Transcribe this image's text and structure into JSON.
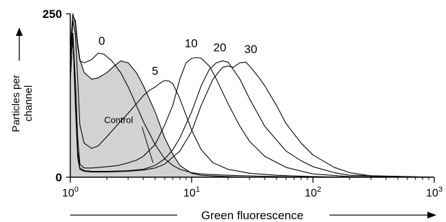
{
  "chart_data": {
    "type": "line",
    "title": "",
    "xlabel": "Green fluorescence",
    "ylabel": [
      "Particles per",
      "channel"
    ],
    "x_scale": "log",
    "xlim": [
      1,
      1000
    ],
    "ylim": [
      0,
      250
    ],
    "x_ticks": [
      {
        "value": 1,
        "base": "10",
        "exp": "0"
      },
      {
        "value": 10,
        "base": "10",
        "exp": "1"
      },
      {
        "value": 100,
        "base": "10",
        "exp": "2"
      },
      {
        "value": 1000,
        "base": "10",
        "exp": "3"
      }
    ],
    "y_ticks": [
      {
        "value": 0,
        "label": "0"
      },
      {
        "value": 250,
        "label": "250"
      }
    ],
    "grid": false,
    "legend": "none",
    "series": [
      {
        "name": "Control",
        "fill": "#d2d2d2",
        "x": [
          1,
          1.05,
          1.1,
          1.15,
          1.2,
          1.3,
          1.5,
          1.7,
          2,
          2.3,
          2.6,
          3,
          3.5,
          4,
          5,
          6,
          7,
          8,
          10,
          12,
          15,
          20,
          30,
          50,
          100
        ],
        "y": [
          200,
          245,
          240,
          205,
          180,
          160,
          150,
          152,
          160,
          170,
          178,
          175,
          160,
          140,
          100,
          60,
          35,
          18,
          6,
          3,
          2,
          1,
          0,
          0,
          0
        ]
      },
      {
        "name": "0",
        "x": [
          1,
          1.05,
          1.1,
          1.15,
          1.2,
          1.3,
          1.5,
          1.7,
          1.9,
          2.2,
          2.6,
          3,
          3.5,
          4,
          5,
          6,
          7,
          8,
          10,
          12,
          15,
          20,
          30,
          50,
          100,
          200,
          1000
        ],
        "y": [
          195,
          250,
          235,
          200,
          178,
          175,
          180,
          190,
          188,
          178,
          160,
          138,
          110,
          85,
          50,
          28,
          18,
          12,
          7,
          5,
          4,
          3,
          2,
          1,
          0,
          0,
          0
        ]
      },
      {
        "name": "5",
        "x": [
          1,
          1.05,
          1.1,
          1.15,
          1.2,
          1.3,
          1.5,
          1.7,
          2,
          2.5,
          3,
          3.5,
          4,
          4.5,
          5,
          5.5,
          6,
          6.5,
          7,
          8,
          10,
          12,
          15,
          20,
          30,
          50,
          100,
          200,
          1000
        ],
        "y": [
          180,
          240,
          220,
          150,
          80,
          52,
          44,
          48,
          62,
          82,
          98,
          112,
          125,
          133,
          138,
          144,
          148,
          147,
          143,
          120,
          72,
          42,
          22,
          12,
          6,
          3,
          1,
          0,
          0
        ]
      },
      {
        "name": "10",
        "x": [
          1,
          1.05,
          1.1,
          1.15,
          1.2,
          1.3,
          1.5,
          2,
          2.5,
          3,
          3.5,
          4,
          5,
          6,
          7,
          8,
          9,
          10,
          11,
          12,
          14,
          16,
          20,
          25,
          30,
          40,
          60,
          100,
          200,
          1000
        ],
        "y": [
          150,
          220,
          150,
          60,
          20,
          14,
          14,
          16,
          18,
          22,
          26,
          32,
          50,
          80,
          110,
          150,
          175,
          182,
          183,
          182,
          170,
          150,
          112,
          78,
          55,
          32,
          15,
          5,
          1,
          0
        ]
      },
      {
        "name": "20",
        "x": [
          1,
          1.05,
          1.1,
          1.15,
          1.2,
          1.3,
          1.5,
          2,
          3,
          4,
          5,
          6,
          7,
          8,
          10,
          12,
          14,
          16,
          18,
          20,
          25,
          30,
          40,
          60,
          80,
          100,
          150,
          200,
          1000
        ],
        "y": [
          150,
          220,
          120,
          40,
          14,
          10,
          9,
          9,
          10,
          12,
          18,
          28,
          42,
          60,
          100,
          140,
          165,
          175,
          178,
          176,
          150,
          120,
          78,
          40,
          25,
          16,
          7,
          3,
          0
        ]
      },
      {
        "name": "30",
        "x": [
          1,
          1.05,
          1.1,
          1.15,
          1.2,
          1.3,
          1.5,
          2,
          3,
          4,
          5,
          6,
          8,
          10,
          12,
          15,
          18,
          20,
          22,
          25,
          28,
          30,
          35,
          40,
          50,
          60,
          80,
          100,
          150,
          200,
          300,
          1000
        ],
        "y": [
          150,
          220,
          110,
          30,
          12,
          9,
          8,
          8,
          9,
          11,
          14,
          20,
          40,
          70,
          110,
          150,
          168,
          170,
          168,
          175,
          176,
          170,
          155,
          140,
          110,
          82,
          52,
          34,
          15,
          7,
          2,
          0
        ]
      }
    ]
  }
}
